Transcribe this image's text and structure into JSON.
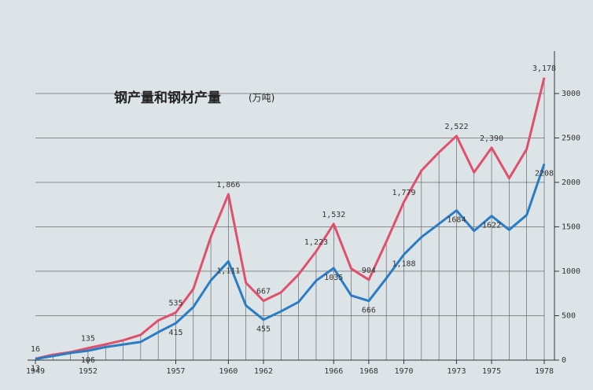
{
  "chart_data": {
    "type": "line",
    "title": "钢产量和钢材产量",
    "subtitle": "(万吨)",
    "x": [
      1949,
      1950,
      1951,
      1952,
      1953,
      1954,
      1955,
      1956,
      1957,
      1958,
      1959,
      1960,
      1961,
      1962,
      1963,
      1964,
      1965,
      1966,
      1967,
      1968,
      1969,
      1970,
      1971,
      1972,
      1973,
      1974,
      1975,
      1976,
      1977,
      1978
    ],
    "xlim": [
      1949,
      1978
    ],
    "xticks": [
      1949,
      1952,
      1957,
      1960,
      1962,
      1966,
      1968,
      1970,
      1973,
      1975,
      1978
    ],
    "ylim": [
      0,
      3300
    ],
    "yticks": [
      0,
      500,
      1000,
      1500,
      2000,
      2500,
      3000
    ],
    "grid": true,
    "series": [
      {
        "color": "#e0506c",
        "values": [
          16,
          61,
          90,
          135,
          177,
          223,
          285,
          447,
          535,
          800,
          1387,
          1866,
          870,
          667,
          762,
          964,
          1223,
          1532,
          1029,
          904,
          1333,
          1779,
          2132,
          2338,
          2522,
          2112,
          2390,
          2046,
          2374,
          3178
        ],
        "value_labels": [
          "16",
          null,
          null,
          "135",
          null,
          null,
          null,
          null,
          "535",
          null,
          null,
          "1,866",
          null,
          "667",
          null,
          null,
          "1,223",
          "1,532",
          null,
          "904",
          null,
          "1,779",
          null,
          null,
          "2,522",
          null,
          "2,390",
          null,
          null,
          "3,178"
        ]
      },
      {
        "color": "#2a7cc4",
        "values": [
          13,
          46,
          81,
          106,
          147,
          176,
          205,
          314,
          415,
          597,
          897,
          1111,
          614,
          455,
          549,
          654,
          894,
          1035,
          727,
          666,
          921,
          1188,
          1384,
          1533,
          1684,
          1454,
          1622,
          1466,
          1633,
          2208
        ],
        "value_labels": [
          "13",
          null,
          null,
          "106",
          null,
          null,
          null,
          null,
          "415",
          null,
          null,
          "1,111",
          null,
          "455",
          null,
          null,
          null,
          "1035",
          null,
          "666",
          null,
          "1,188",
          null,
          null,
          "1684",
          null,
          "1622",
          null,
          null,
          "2208"
        ]
      }
    ]
  }
}
